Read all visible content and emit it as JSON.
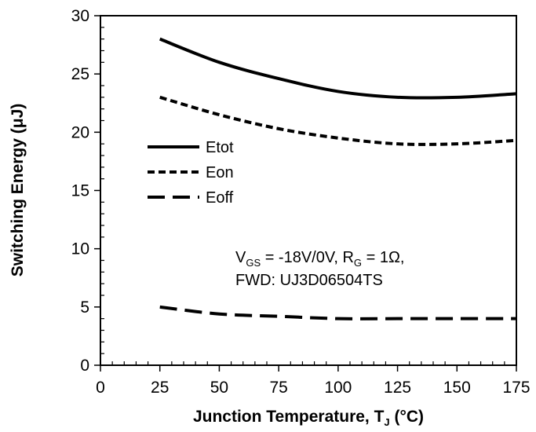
{
  "chart_data": {
    "type": "line",
    "xlabel": "Junction Temperature, T",
    "xlabel_sub": "J",
    "xlabel_unit": " (°C)",
    "ylabel": "Switching Energy (μJ)",
    "xlim": [
      0,
      175
    ],
    "ylim": [
      0,
      30
    ],
    "x_ticks": [
      0,
      25,
      50,
      75,
      100,
      125,
      150,
      175
    ],
    "y_ticks": [
      0,
      5,
      10,
      15,
      20,
      25,
      30
    ],
    "grid": false,
    "legend_position": "left-middle",
    "series": [
      {
        "name": "Etot",
        "style": "solid",
        "x": [
          25,
          50,
          75,
          100,
          125,
          150,
          175
        ],
        "values": [
          28.0,
          26.0,
          24.6,
          23.5,
          23.0,
          23.0,
          23.3
        ]
      },
      {
        "name": "Eon",
        "style": "short-dash",
        "x": [
          25,
          50,
          75,
          100,
          125,
          150,
          175
        ],
        "values": [
          23.0,
          21.5,
          20.3,
          19.5,
          19.0,
          19.0,
          19.3
        ]
      },
      {
        "name": "Eoff",
        "style": "long-dash",
        "x": [
          25,
          50,
          75,
          100,
          125,
          150,
          175
        ],
        "values": [
          5.0,
          4.4,
          4.2,
          4.0,
          4.0,
          4.0,
          4.0
        ]
      }
    ],
    "annotations": [
      {
        "parts": [
          "V",
          "GS",
          " = -18V/0V, R",
          "G",
          " = 1Ω,"
        ]
      },
      {
        "parts": [
          "FWD: UJ3D06504TS"
        ]
      }
    ]
  }
}
